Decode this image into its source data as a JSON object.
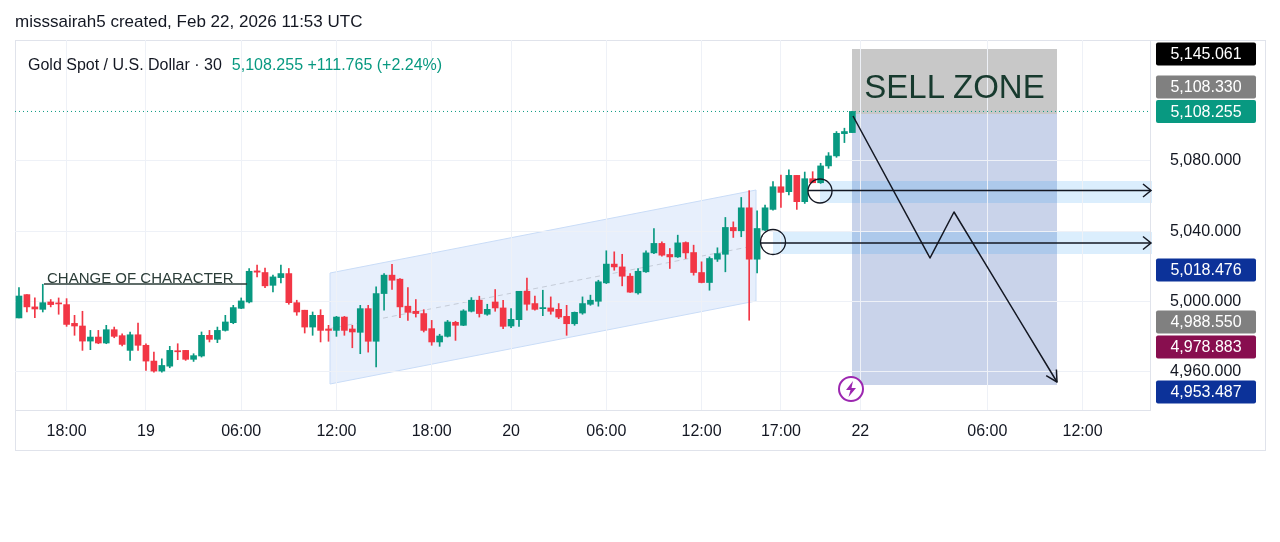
{
  "chart_data": {
    "type": "candlestick",
    "title": "Gold Spot / U.S. Dollar · 30",
    "subtitle": "5,108.255 +111.765 (+2.24%)",
    "categories": [
      null,
      null,
      null,
      null,
      null,
      null,
      "18:00",
      null,
      null,
      null,
      null,
      null,
      null,
      null,
      null,
      null,
      "19",
      null,
      null,
      null,
      null,
      null,
      null,
      null,
      null,
      null,
      null,
      null,
      "06:00",
      null,
      null,
      null,
      null,
      null,
      null,
      null,
      null,
      null,
      null,
      null,
      "12:00",
      null,
      null,
      null,
      null,
      null,
      null,
      null,
      null,
      null,
      null,
      null,
      "18:00",
      null,
      null,
      null,
      null,
      null,
      null,
      null,
      null,
      null,
      "20",
      null,
      null,
      null,
      null,
      null,
      null,
      null,
      null,
      null,
      null,
      null,
      "06:00",
      null,
      null,
      null,
      null,
      null,
      null,
      null,
      null,
      null,
      null,
      null,
      "12:00",
      null,
      null,
      null,
      null,
      null,
      null,
      null,
      null,
      null,
      "17:00",
      null,
      null,
      null,
      null,
      null,
      null,
      null,
      null,
      null,
      "22",
      null,
      null,
      null,
      null,
      null,
      null,
      null,
      null,
      null,
      null,
      null,
      null,
      null,
      null,
      null,
      "06:00",
      null,
      null,
      null,
      null,
      null,
      null,
      null,
      null,
      null,
      null,
      null,
      "12:00",
      null,
      null,
      null,
      null,
      null,
      null,
      null,
      null
    ],
    "ohlc": [
      [
        4990.5,
        5007.8,
        4990.5,
        5003.0
      ],
      [
        5003.8,
        5003.8,
        4993.9,
        4996.8
      ],
      [
        4996.8,
        5001.9,
        4990.7,
        4995.6
      ],
      [
        4995.4,
        5009.7,
        4993.9,
        4999.2
      ],
      [
        4999.6,
        5001.0,
        4996.8,
        4998.1
      ],
      [
        4999.0,
        5001.9,
        4992.6,
        4998.5
      ],
      [
        4998.1,
        5001.5,
        4985.7,
        4986.8
      ],
      [
        4987.4,
        4992.0,
        4980.6,
        4985.9
      ],
      [
        4985.9,
        4994.3,
        4972.0,
        4977.3
      ],
      [
        4977.3,
        4983.4,
        4972.4,
        4979.6
      ],
      [
        4979.6,
        4983.4,
        4975.8,
        4976.2
      ],
      [
        4976.2,
        4986.3,
        4975.8,
        4983.8
      ],
      [
        4983.8,
        4985.3,
        4979.2,
        4980.0
      ],
      [
        4980.4,
        4981.5,
        4974.5,
        4975.4
      ],
      [
        4972.0,
        4982.5,
        4966.3,
        4980.9
      ],
      [
        4980.9,
        4987.6,
        4972.0,
        4974.9
      ],
      [
        4974.9,
        4975.8,
        4960.6,
        4965.9
      ],
      [
        4965.9,
        4971.0,
        4959.6,
        4960.2
      ],
      [
        4960.2,
        4967.2,
        4959.6,
        4963.4
      ],
      [
        4963.0,
        4974.3,
        4962.1,
        4972.0
      ],
      [
        4971.8,
        4975.8,
        4966.7,
        4971.2
      ],
      [
        4972.0,
        4972.0,
        4966.3,
        4966.9
      ],
      [
        4966.9,
        4970.1,
        4965.7,
        4969.0
      ],
      [
        4968.8,
        4982.5,
        4968.2,
        4980.6
      ],
      [
        4980.6,
        4983.4,
        4976.8,
        4978.3
      ],
      [
        4978.3,
        4985.3,
        4976.4,
        4983.4
      ],
      [
        4983.4,
        4992.0,
        4983.0,
        4988.2
      ],
      [
        4987.8,
        4997.7,
        4987.2,
        4996.4
      ],
      [
        4996.0,
        5001.9,
        4995.8,
        5000.2
      ],
      [
        4999.6,
        5018.7,
        4999.0,
        5017.1
      ],
      [
        5017.3,
        5020.6,
        5013.9,
        5016.6
      ],
      [
        5016.4,
        5019.0,
        5007.8,
        5008.8
      ],
      [
        5009.1,
        5014.9,
        5005.3,
        5013.9
      ],
      [
        5013.5,
        5020.6,
        5010.5,
        5015.8
      ],
      [
        5015.8,
        5018.7,
        4998.3,
        4999.2
      ],
      [
        4999.2,
        5000.6,
        4992.0,
        4993.9
      ],
      [
        4994.9,
        4994.9,
        4981.9,
        4985.3
      ],
      [
        4985.3,
        4993.9,
        4980.6,
        4992.0
      ],
      [
        4992.0,
        4995.2,
        4976.8,
        4983.4
      ],
      [
        4984.2,
        4986.3,
        4977.2,
        4983.4
      ],
      [
        4983.4,
        4991.4,
        4980.0,
        4991.0
      ],
      [
        4991.0,
        4991.4,
        4980.6,
        4983.4
      ],
      [
        4984.2,
        4986.3,
        4973.5,
        4982.5
      ],
      [
        4982.3,
        4997.7,
        4970.1,
        4995.8
      ],
      [
        4995.8,
        4997.7,
        4971.0,
        4977.2
      ],
      [
        4977.2,
        5008.2,
        4962.5,
        5004.4
      ],
      [
        5004.4,
        5015.8,
        4994.9,
        5014.9
      ],
      [
        5014.9,
        5021.1,
        5006.7,
        5012.0
      ],
      [
        5012.6,
        5013.0,
        4990.7,
        4996.8
      ],
      [
        4997.2,
        5007.8,
        4989.1,
        4993.7
      ],
      [
        4994.3,
        5001.0,
        4991.0,
        4993.0
      ],
      [
        4993.0,
        4995.2,
        4982.5,
        4983.4
      ],
      [
        4984.4,
        4989.1,
        4974.9,
        4976.8
      ],
      [
        4976.8,
        4981.2,
        4974.3,
        4980.2
      ],
      [
        4980.0,
        4989.1,
        4979.6,
        4988.2
      ],
      [
        4988.0,
        4988.6,
        4977.7,
        4986.3
      ],
      [
        4986.3,
        4995.2,
        4986.1,
        4994.5
      ],
      [
        4994.3,
        5002.1,
        4993.9,
        5000.6
      ],
      [
        5000.6,
        5002.9,
        4991.0,
        4993.0
      ],
      [
        4992.6,
        4998.3,
        4992.0,
        4995.4
      ],
      [
        4999.6,
        5006.7,
        4994.3,
        4996.2
      ],
      [
        4996.2,
        5000.6,
        4984.4,
        4985.7
      ],
      [
        4985.9,
        4995.8,
        4985.0,
        4989.7
      ],
      [
        4989.5,
        5005.7,
        4985.7,
        5005.7
      ],
      [
        5005.7,
        5013.3,
        4994.9,
        4998.3
      ],
      [
        4998.7,
        5002.9,
        4994.9,
        4995.4
      ],
      [
        4995.8,
        5006.3,
        4991.8,
        4996.4
      ],
      [
        4996.2,
        5002.5,
        4992.6,
        4994.3
      ],
      [
        4995.4,
        4998.7,
        4990.1,
        4991.0
      ],
      [
        4991.4,
        4997.7,
        4980.6,
        4987.2
      ],
      [
        4987.2,
        4993.9,
        4986.3,
        4993.7
      ],
      [
        4993.3,
        5002.5,
        4992.6,
        4998.7
      ],
      [
        4998.3,
        5003.5,
        4997.7,
        5000.6
      ],
      [
        5000.0,
        5012.0,
        4997.2,
        5011.1
      ],
      [
        5010.5,
        5028.8,
        5010.1,
        5021.2
      ],
      [
        5021.2,
        5028.2,
        5017.7,
        5019.6
      ],
      [
        5019.6,
        5026.8,
        5008.8,
        5014.3
      ],
      [
        5014.3,
        5015.8,
        5005.0,
        5005.2
      ],
      [
        5004.8,
        5018.7,
        5004.0,
        5017.1
      ],
      [
        5016.8,
        5028.8,
        5016.4,
        5027.6
      ],
      [
        5027.6,
        5041.5,
        5027.2,
        5033.0
      ],
      [
        5033.0,
        5033.9,
        5025.7,
        5026.3
      ],
      [
        5026.7,
        5030.1,
        5018.7,
        5025.3
      ],
      [
        5025.3,
        5037.7,
        5025.0,
        5033.3
      ],
      [
        5033.5,
        5033.9,
        5024.4,
        5027.6
      ],
      [
        5027.8,
        5032.0,
        5014.9,
        5016.4
      ],
      [
        5016.4,
        5022.5,
        5010.5,
        5010.7
      ],
      [
        5010.7,
        5025.3,
        5006.3,
        5024.4
      ],
      [
        5024.0,
        5030.5,
        5022.7,
        5027.2
      ],
      [
        5026.8,
        5047.8,
        5016.8,
        5042.1
      ],
      [
        5042.1,
        5045.3,
        5036.4,
        5040.2
      ],
      [
        5040.2,
        5059.2,
        5036.8,
        5053.3
      ],
      [
        5053.3,
        5063.1,
        4989.2,
        5024.0
      ],
      [
        5024.0,
        5051.6,
        5016.2,
        5041.5
      ],
      [
        5040.6,
        5054.9,
        5040.2,
        5053.3
      ],
      [
        5052.4,
        5068.2,
        5052.0,
        5065.3
      ],
      [
        5065.3,
        5072.0,
        5053.5,
        5062.1
      ],
      [
        5062.5,
        5074.9,
        5060.6,
        5071.8
      ],
      [
        5071.8,
        5071.8,
        5052.4,
        5056.8
      ],
      [
        5056.8,
        5073.7,
        5055.8,
        5069.9
      ],
      [
        5069.9,
        5073.9,
        5067.6,
        5067.6
      ],
      [
        5067.6,
        5078.7,
        5067.2,
        5077.2
      ],
      [
        5077.2,
        5084.8,
        5075.8,
        5082.9
      ],
      [
        5082.9,
        5096.8,
        5082.1,
        5095.8
      ],
      [
        5095.6,
        5098.7,
        5090.5,
        5096.8
      ],
      [
        5096.2,
        5108.3,
        5096.2,
        5108.255
      ],
      null,
      null,
      null,
      null,
      null,
      null,
      null,
      null,
      null,
      null,
      null,
      null,
      null,
      null,
      null,
      null,
      null,
      null,
      null,
      null,
      null,
      null,
      null,
      null,
      null,
      null,
      null,
      null,
      null,
      null,
      null,
      null,
      null,
      null,
      null,
      null,
      null
    ],
    "colors": [
      "#089981",
      "#f23645",
      "#f23645",
      "#089981",
      "#f23645",
      "#f23645",
      "#f23645",
      "#f23645",
      "#f23645",
      "#089981",
      "#f23645",
      "#089981",
      "#f23645",
      "#f23645",
      "#089981",
      "#f23645",
      "#f23645",
      "#f23645",
      "#089981",
      "#089981",
      "#f23645",
      "#f23645",
      "#089981",
      "#089981",
      "#f23645",
      "#089981",
      "#089981",
      "#089981",
      "#089981",
      "#089981",
      "#f23645",
      "#f23645",
      "#089981",
      "#089981",
      "#f23645",
      "#f23645",
      "#f23645",
      "#089981",
      "#f23645",
      "#f23645",
      "#089981",
      "#f23645",
      "#f23645",
      "#089981",
      "#f23645",
      "#089981",
      "#089981",
      "#f23645",
      "#f23645",
      "#f23645",
      "#f23645",
      "#f23645",
      "#f23645",
      "#089981",
      "#089981",
      "#f23645",
      "#089981",
      "#089981",
      "#f23645",
      "#089981",
      "#f23645",
      "#f23645",
      "#089981",
      "#089981",
      "#f23645",
      "#f23645",
      "#089981",
      "#f23645",
      "#f23645",
      "#f23645",
      "#089981",
      "#089981",
      "#089981",
      "#089981",
      "#089981",
      "#f23645",
      "#f23645",
      "#f23645",
      "#089981",
      "#089981",
      "#089981",
      "#f23645",
      "#f23645",
      "#089981",
      "#f23645",
      "#f23645",
      "#f23645",
      "#089981",
      "#089981",
      "#089981",
      "#f23645",
      "#089981",
      "#f23645",
      "#089981",
      "#089981",
      "#089981",
      "#f23645",
      "#089981",
      "#f23645",
      "#089981",
      "#f23645",
      "#089981",
      "#089981",
      "#089981",
      "#089981",
      "#089981",
      null,
      null,
      null,
      null,
      null,
      null,
      null,
      null,
      null,
      null,
      null,
      null,
      null,
      null,
      null,
      null,
      null,
      null,
      null,
      null,
      null,
      null,
      null,
      null,
      null,
      null,
      null,
      null,
      null,
      null,
      null,
      null,
      null,
      null,
      null,
      null,
      null
    ],
    "ylim": [
      4938,
      5149
    ],
    "yticks": [
      {
        "value": 4960,
        "label": "4,960.000"
      },
      {
        "value": 5000,
        "label": "5,000.000"
      },
      {
        "value": 5040,
        "label": "5,040.000"
      },
      {
        "value": 5080,
        "label": "5,080.000"
      }
    ],
    "grid": true,
    "ref_lines": [
      {
        "axis": "y",
        "value": 5108.255,
        "label": "5,108.255",
        "color": "#089981",
        "line_style": "dotted"
      }
    ],
    "annotations": [
      "misssairah5 created, Feb 22, 2026 11:53 UTC",
      "SELL ZONE",
      "CHANGE OF CHARACTER",
      "5,145.061",
      "5,108.330",
      "5,018.476",
      "4,988.550",
      "4,978.883",
      "4,953.487"
    ]
  }
}
